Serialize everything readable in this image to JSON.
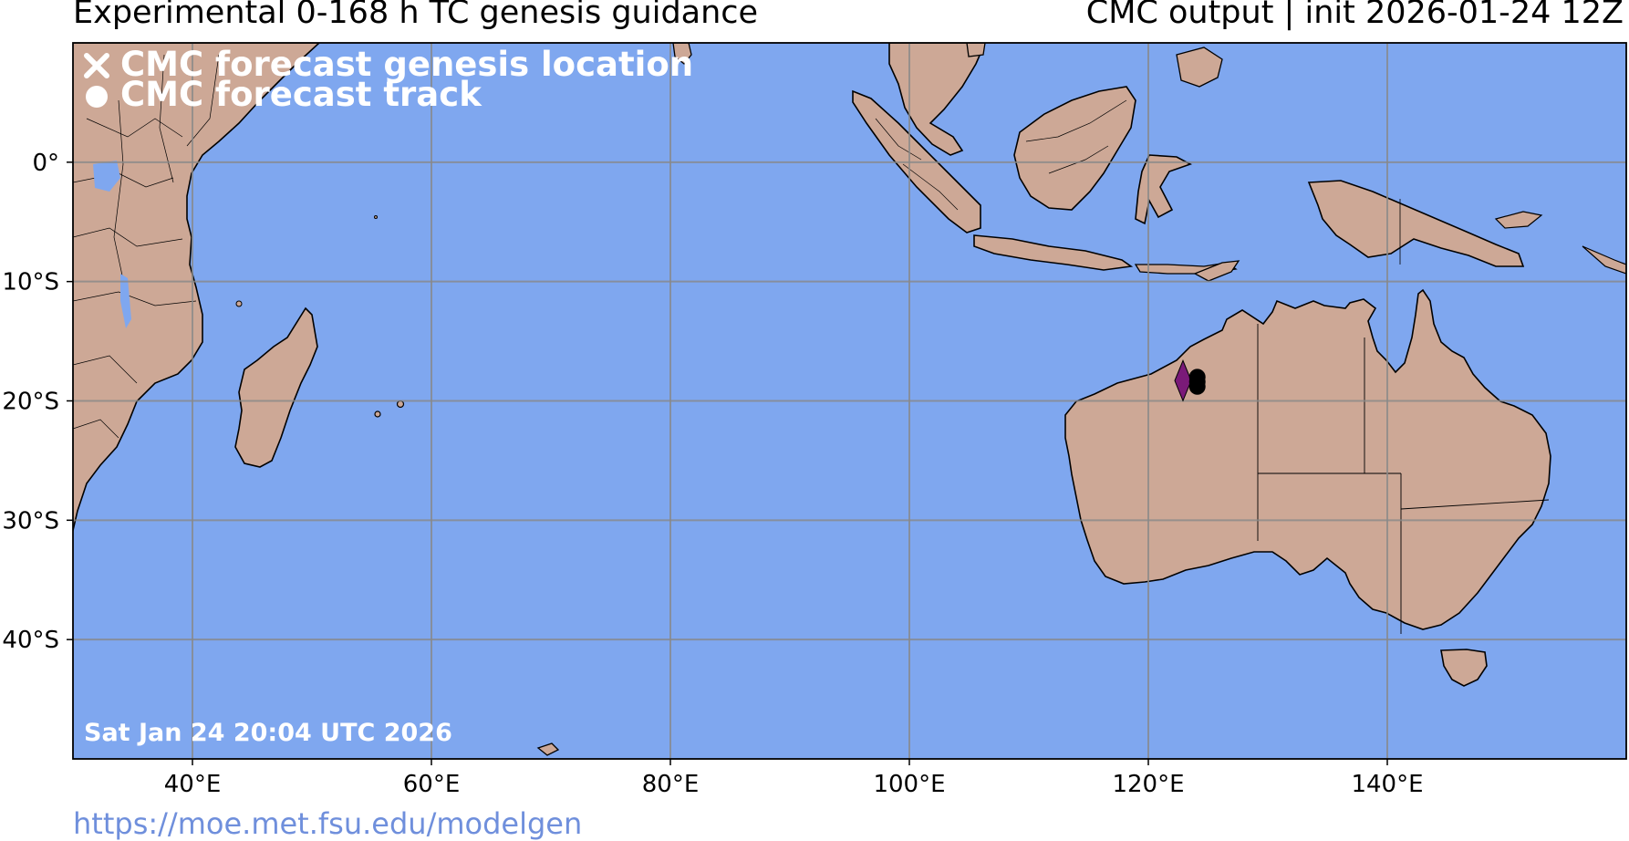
{
  "header": {
    "title_left": "Experimental 0-168 h TC genesis guidance",
    "title_right": "CMC output | init 2026-01-24 12Z"
  },
  "legend": {
    "items": [
      {
        "icon": "x-marker-icon",
        "label": "CMC forecast genesis location"
      },
      {
        "icon": "dot-marker-icon",
        "label": "CMC forecast track"
      }
    ]
  },
  "map": {
    "lon_range": [
      30,
      160
    ],
    "lat_range": [
      -50,
      10
    ],
    "lon_ticks": [
      {
        "value": 40,
        "label": "40°E"
      },
      {
        "value": 60,
        "label": "60°E"
      },
      {
        "value": 80,
        "label": "80°E"
      },
      {
        "value": 100,
        "label": "100°E"
      },
      {
        "value": 120,
        "label": "120°E"
      },
      {
        "value": 140,
        "label": "140°E"
      }
    ],
    "lat_ticks": [
      {
        "value": 0,
        "label": "0°"
      },
      {
        "value": -10,
        "label": "10°S"
      },
      {
        "value": -20,
        "label": "20°S"
      },
      {
        "value": -30,
        "label": "30°S"
      },
      {
        "value": -40,
        "label": "40°S"
      }
    ],
    "colors": {
      "ocean": "#7fa7ef",
      "land": "#cda896",
      "gridline": "#888888",
      "track": "#000000",
      "genesis": "#7a1a78"
    },
    "track_points": [
      {
        "lon": 124.1,
        "lat": -18.0
      },
      {
        "lon": 124.1,
        "lat": -18.4
      },
      {
        "lon": 124.1,
        "lat": -18.8
      }
    ],
    "genesis_marker": {
      "lon": 122.9,
      "lat": -18.3
    }
  },
  "timestamp": "Sat Jan 24 20:04 UTC 2026",
  "footer": {
    "url": "https://moe.met.fsu.edu/modelgen"
  }
}
